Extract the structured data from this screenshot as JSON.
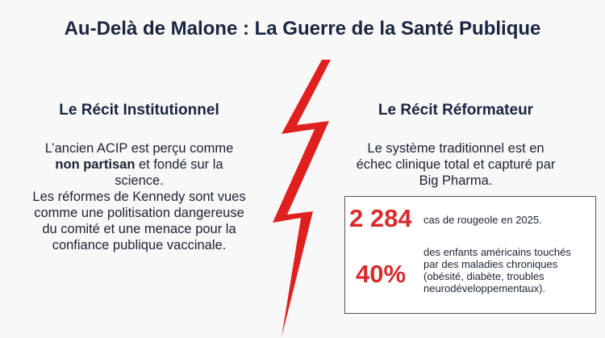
{
  "title": "Au-Delà de Malone : La Guerre de la Santé Publique",
  "left": {
    "heading": "Le Récit Institutionnel",
    "paragraph1": [
      "L’ancien ACIP est perçu comme ",
      "non partisan",
      " et fondé sur la science."
    ],
    "paragraph2": "Les réformes de Kennedy sont vues comme une politisation dangereuse du comité  et une menace pour la confiance publique vaccinale."
  },
  "right": {
    "heading": "Le Récit Réformateur",
    "paragraph": "Le système traditionnel est en échec clinique total et capturé par Big Pharma.",
    "stats": [
      {
        "value": "2 284",
        "text": "cas de rougeole en 2025."
      },
      {
        "value": "40%",
        "text": "des enfants américains touchés par des maladies chroniques (obésité, diabète, troubles neurodéveloppementaux)."
      }
    ]
  }
}
